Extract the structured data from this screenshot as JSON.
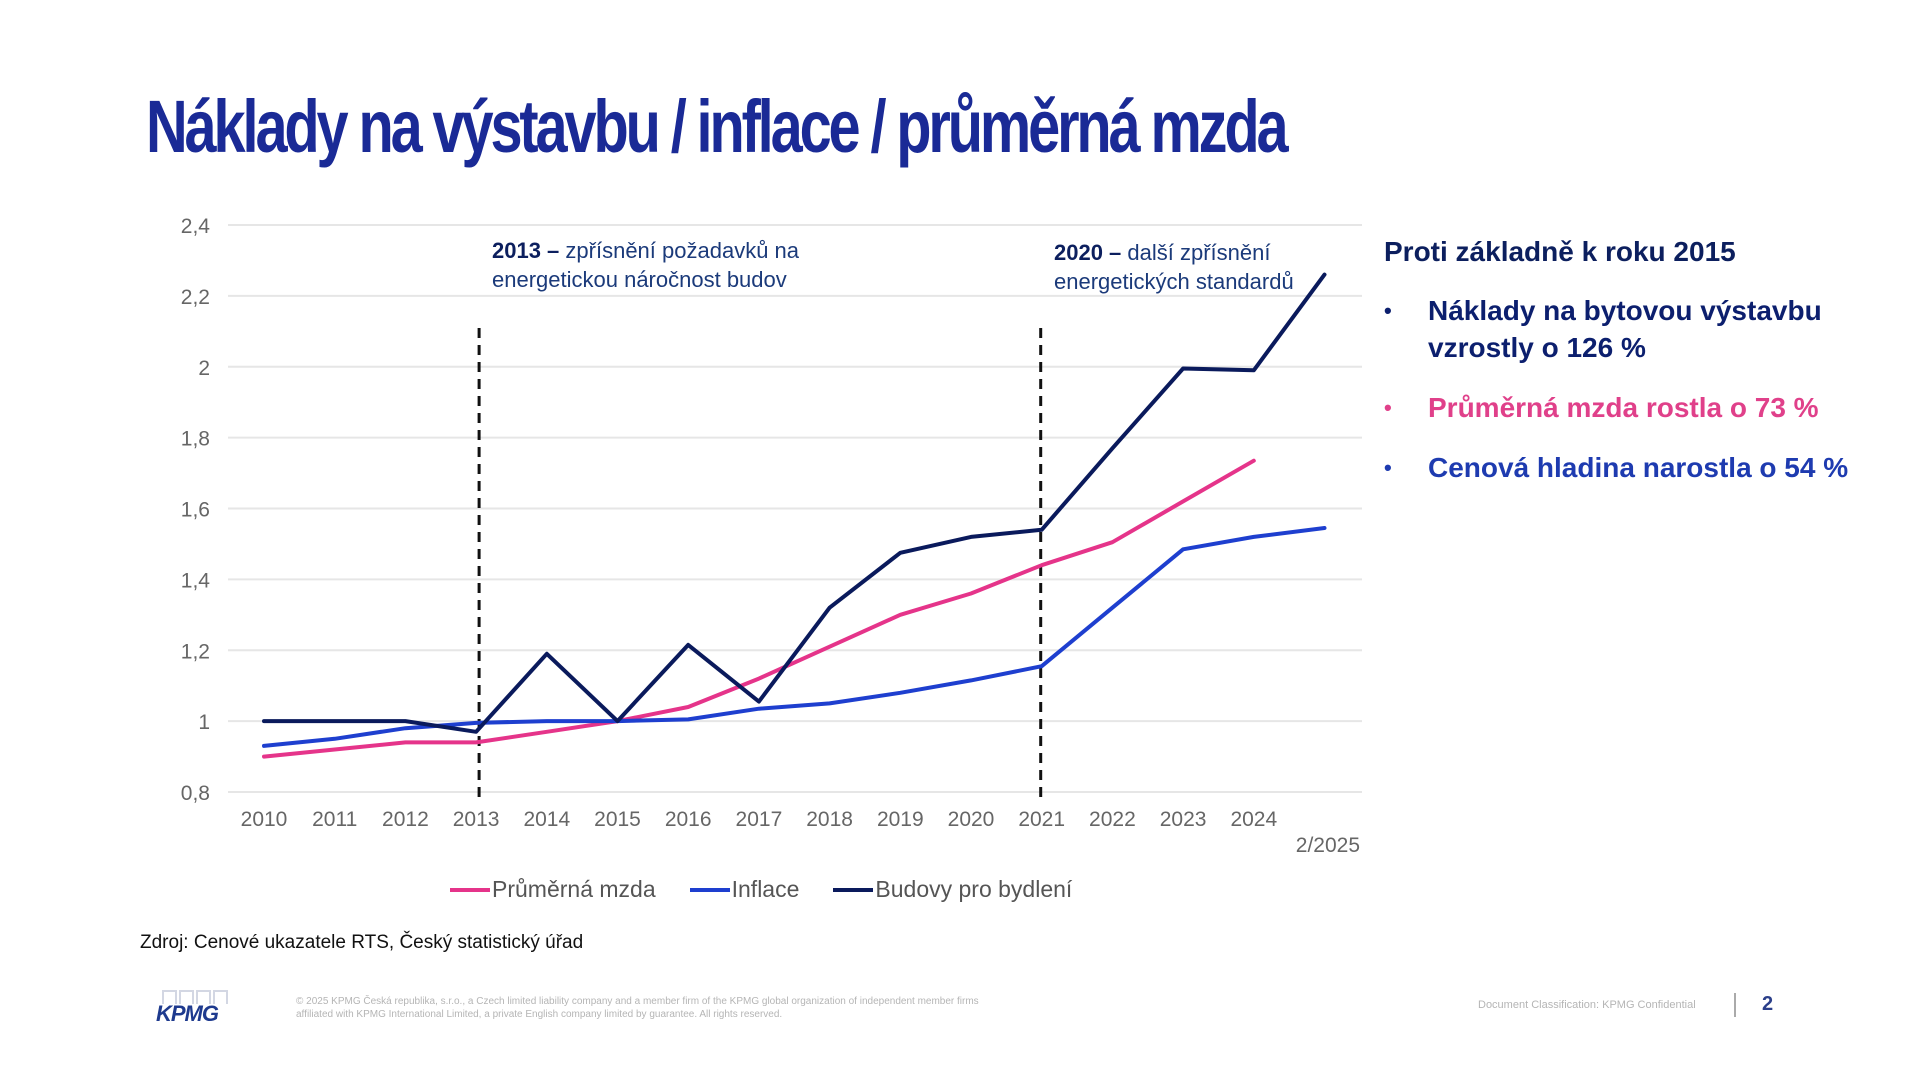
{
  "slide": {
    "title": "Náklady na výstavbu / inflace / průměrná mzda",
    "page_number": "2",
    "source": "Zdroj: Cenové ukazatele RTS, Český statistický úřad",
    "copyright": "© 2025 KPMG Česká republika, s.r.o., a Czech limited liability company and a member firm of the KPMG global organization of independent member firms affiliated with KPMG International Limited, a private English company limited by guarantee. All rights reserved.",
    "classification": "Document Classification: KPMG Confidential",
    "logo_text": "KPMG"
  },
  "annotations": [
    {
      "bold": "2013 –",
      "text": " zpřísnění požadavků na energetickou náročnost budov",
      "year": 2013
    },
    {
      "bold": "2020 –",
      "text": " další zpřísnění energetických standardů",
      "year": 2021
    }
  ],
  "side": {
    "heading": "Proti základně k roku 2015",
    "bullets": [
      {
        "text": "Náklady na bytovou výstavbu vzrostly o 126 %",
        "color": "#0c1f6e"
      },
      {
        "text": "Průměrná mzda rostla o 73 %",
        "color": "#e0408a"
      },
      {
        "text": "Cenová hladina narostla o 54 %",
        "color": "#1e3bb0"
      }
    ]
  },
  "chart_data": {
    "type": "line",
    "title": "",
    "xlabel": "",
    "ylabel": "",
    "categories": [
      "2010",
      "2011",
      "2012",
      "2013",
      "2014",
      "2015",
      "2016",
      "2017",
      "2018",
      "2019",
      "2020",
      "2021",
      "2022",
      "2023",
      "2024",
      "2/2025"
    ],
    "y_ticks": [
      "0,8",
      "1",
      "1,2",
      "1,4",
      "1,6",
      "1,8",
      "2",
      "2,2",
      "2,4"
    ],
    "y_tick_values": [
      0.8,
      1.0,
      1.2,
      1.4,
      1.6,
      1.8,
      2.0,
      2.2,
      2.4
    ],
    "ylim": [
      0.8,
      2.4
    ],
    "grid": true,
    "legend_position": "bottom",
    "vertical_markers": [
      "2013",
      "2021"
    ],
    "series": [
      {
        "name": "Průměrná mzda",
        "color": "#e5348a",
        "values": [
          0.9,
          0.92,
          0.94,
          0.94,
          0.97,
          1.0,
          1.04,
          1.12,
          1.21,
          1.3,
          1.36,
          1.44,
          1.505,
          1.62,
          1.735,
          null
        ]
      },
      {
        "name": "Inflace",
        "color": "#1e3fcf",
        "values": [
          0.93,
          0.95,
          0.98,
          0.995,
          1.0,
          1.0,
          1.005,
          1.035,
          1.05,
          1.08,
          1.115,
          1.155,
          1.32,
          1.485,
          1.52,
          1.545
        ]
      },
      {
        "name": "Budovy pro bydlení",
        "color": "#0a1a5c",
        "values": [
          1.0,
          1.0,
          1.0,
          0.97,
          1.19,
          1.0,
          1.215,
          1.055,
          1.32,
          1.475,
          1.52,
          1.54,
          1.77,
          1.995,
          1.99,
          2.26
        ]
      }
    ]
  }
}
